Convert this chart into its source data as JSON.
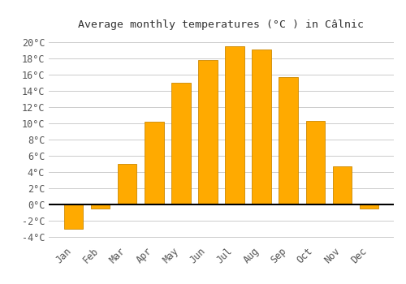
{
  "title": "Average monthly temperatures (°C ) in Câlnic",
  "months": [
    "Jan",
    "Feb",
    "Mar",
    "Apr",
    "May",
    "Jun",
    "Jul",
    "Aug",
    "Sep",
    "Oct",
    "Nov",
    "Dec"
  ],
  "values": [
    -3.0,
    -0.5,
    5.0,
    10.2,
    15.0,
    17.8,
    19.5,
    19.1,
    15.7,
    10.3,
    4.7,
    -0.5
  ],
  "bar_color": "#FFAA00",
  "bar_edge_color": "#CC8800",
  "ylim": [
    -4.5,
    21
  ],
  "yticks": [
    -4,
    -2,
    0,
    2,
    4,
    6,
    8,
    10,
    12,
    14,
    16,
    18,
    20
  ],
  "background_color": "#ffffff",
  "grid_color": "#cccccc",
  "title_fontsize": 9.5,
  "tick_fontsize": 8.5,
  "font_family": "monospace"
}
